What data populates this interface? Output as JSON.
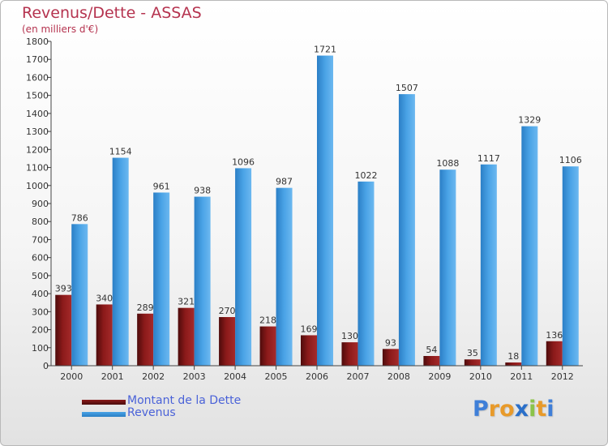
{
  "title": "Revenus/Dette - ASSAS",
  "subtitle": "(en milliers d'€)",
  "colors": {
    "debt": "#8b1a1a",
    "revenue": "#4aa3e6",
    "title": "#b5334f",
    "legend_text": "#4a62d8"
  },
  "legend": {
    "debt_label": "Montant de la Dette",
    "revenue_label": "Revenus"
  },
  "logo": {
    "letters": [
      "P",
      "r",
      "o",
      "x",
      "i",
      "t",
      "i"
    ],
    "colors": [
      "#3f7fd8",
      "#e89a2a",
      "#e89a2a",
      "#2a6fc9",
      "#8bc34a",
      "#e89a2a",
      "#3f7fd8"
    ]
  },
  "chart_data": {
    "type": "bar",
    "title": "Revenus/Dette - ASSAS",
    "subtitle": "(en milliers d'€)",
    "xlabel": "",
    "ylabel": "",
    "ylim": [
      0,
      1800
    ],
    "ytick_step": 100,
    "grid": false,
    "categories": [
      "2000",
      "2001",
      "2002",
      "2003",
      "2004",
      "2005",
      "2006",
      "2007",
      "2008",
      "2009",
      "2010",
      "2011",
      "2012"
    ],
    "series": [
      {
        "name": "Montant de la Dette",
        "values": [
          393,
          340,
          289,
          321,
          270,
          218,
          169,
          130,
          93,
          54,
          35,
          18,
          136
        ]
      },
      {
        "name": "Revenus",
        "values": [
          786,
          1154,
          961,
          938,
          1096,
          987,
          1721,
          1022,
          1507,
          1088,
          1117,
          1329,
          1106
        ]
      }
    ]
  }
}
